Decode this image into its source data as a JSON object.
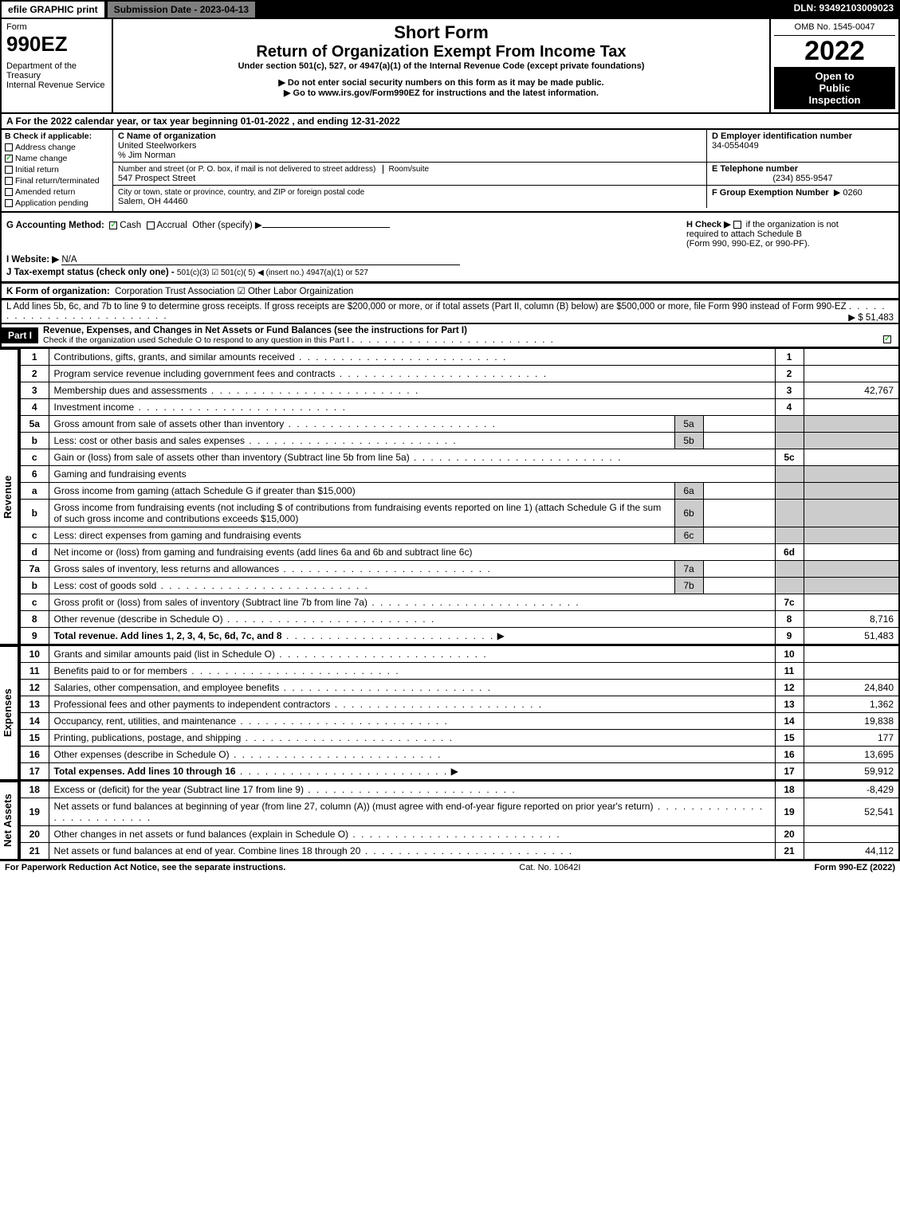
{
  "topbar": {
    "efile": "efile GRAPHIC print",
    "submission": "Submission Date - 2023-04-13",
    "dln": "DLN: 93492103009023"
  },
  "header": {
    "form_label": "Form",
    "form_number": "990EZ",
    "dept": "Department of the Treasury",
    "irs": "Internal Revenue Service",
    "short_form": "Short Form",
    "title": "Return of Organization Exempt From Income Tax",
    "subtitle": "Under section 501(c), 527, or 4947(a)(1) of the Internal Revenue Code (except private foundations)",
    "note1": "▶ Do not enter social security numbers on this form as it may be made public.",
    "note2": "▶ Go to www.irs.gov/Form990EZ for instructions and the latest information.",
    "omb": "OMB No. 1545-0047",
    "year": "2022",
    "inspection1": "Open to",
    "inspection2": "Public",
    "inspection3": "Inspection"
  },
  "sectionA": {
    "text": "A  For the 2022 calendar year, or tax year beginning 01-01-2022 , and ending 12-31-2022"
  },
  "sectionB": {
    "label": "B  Check if applicable:",
    "items": [
      {
        "checked": false,
        "text": "Address change"
      },
      {
        "checked": true,
        "text": "Name change"
      },
      {
        "checked": false,
        "text": "Initial return"
      },
      {
        "checked": false,
        "text": "Final return/terminated"
      },
      {
        "checked": false,
        "text": "Amended return"
      },
      {
        "checked": false,
        "text": "Application pending"
      }
    ]
  },
  "sectionC": {
    "name_label": "C Name of organization",
    "name_value": "United Steelworkers",
    "care_of": "% Jim Norman",
    "street_label": "Number and street (or P. O. box, if mail is not delivered to street address)",
    "room_label": "Room/suite",
    "street_value": "547 Prospect Street",
    "city_label": "City or town, state or province, country, and ZIP or foreign postal code",
    "city_value": "Salem, OH  44460"
  },
  "sectionD": {
    "label": "D Employer identification number",
    "value": "34-0554049"
  },
  "sectionE": {
    "label": "E Telephone number",
    "value": "(234) 855-9547"
  },
  "sectionF": {
    "label": "F Group Exemption Number",
    "value": "▶ 0260"
  },
  "sectionG": {
    "label": "G Accounting Method:",
    "cash": "Cash",
    "accrual": "Accrual",
    "other": "Other (specify) ▶"
  },
  "sectionH": {
    "label": "H  Check ▶",
    "text1": "if the organization is not",
    "text2": "required to attach Schedule B",
    "text3": "(Form 990, 990-EZ, or 990-PF)."
  },
  "sectionI": {
    "label": "I Website: ▶",
    "value": "N/A"
  },
  "sectionJ": {
    "label": "J Tax-exempt status (check only one) -",
    "opts": "501(c)(3)   ☑ 501(c)( 5) ◀ (insert no.)   4947(a)(1) or   527"
  },
  "sectionK": {
    "label": "K Form of organization:",
    "opts": "Corporation   Trust   Association   ☑ Other Labor Orgainization"
  },
  "sectionL": {
    "text": "L Add lines 5b, 6c, and 7b to line 9 to determine gross receipts. If gross receipts are $200,000 or more, or if total assets (Part II, column (B) below) are $500,000 or more, file Form 990 instead of Form 990-EZ",
    "arrow_value": "▶ $ 51,483"
  },
  "partI": {
    "label": "Part I",
    "title": "Revenue, Expenses, and Changes in Net Assets or Fund Balances (see the instructions for Part I)",
    "check_text": "Check if the organization used Schedule O to respond to any question in this Part I"
  },
  "side_labels": {
    "revenue": "Revenue",
    "expenses": "Expenses",
    "net_assets": "Net Assets"
  },
  "revenue_lines": [
    {
      "n": "1",
      "desc": "Contributions, gifts, grants, and similar amounts received",
      "col": "1",
      "val": ""
    },
    {
      "n": "2",
      "desc": "Program service revenue including government fees and contracts",
      "col": "2",
      "val": ""
    },
    {
      "n": "3",
      "desc": "Membership dues and assessments",
      "col": "3",
      "val": "42,767"
    },
    {
      "n": "4",
      "desc": "Investment income",
      "col": "4",
      "val": ""
    }
  ],
  "line5": {
    "a_n": "5a",
    "a_desc": "Gross amount from sale of assets other than inventory",
    "a_col": "5a",
    "a_val": "",
    "b_n": "b",
    "b_desc": "Less: cost or other basis and sales expenses",
    "b_col": "5b",
    "b_val": "",
    "c_n": "c",
    "c_desc": "Gain or (loss) from sale of assets other than inventory (Subtract line 5b from line 5a)",
    "c_col": "5c",
    "c_val": ""
  },
  "line6": {
    "n": "6",
    "desc": "Gaming and fundraising events",
    "a_n": "a",
    "a_desc": "Gross income from gaming (attach Schedule G if greater than $15,000)",
    "a_col": "6a",
    "a_val": "",
    "b_n": "b",
    "b_desc": "Gross income from fundraising events (not including $                  of contributions from fundraising events reported on line 1) (attach Schedule G if the sum of such gross income and contributions exceeds $15,000)",
    "b_col": "6b",
    "b_val": "",
    "c_n": "c",
    "c_desc": "Less: direct expenses from gaming and fundraising events",
    "c_col": "6c",
    "c_val": "",
    "d_n": "d",
    "d_desc": "Net income or (loss) from gaming and fundraising events (add lines 6a and 6b and subtract line 6c)",
    "d_col": "6d",
    "d_val": ""
  },
  "line7": {
    "a_n": "7a",
    "a_desc": "Gross sales of inventory, less returns and allowances",
    "a_col": "7a",
    "a_val": "",
    "b_n": "b",
    "b_desc": "Less: cost of goods sold",
    "b_col": "7b",
    "b_val": "",
    "c_n": "c",
    "c_desc": "Gross profit or (loss) from sales of inventory (Subtract line 7b from line 7a)",
    "c_col": "7c",
    "c_val": ""
  },
  "line8": {
    "n": "8",
    "desc": "Other revenue (describe in Schedule O)",
    "col": "8",
    "val": "8,716"
  },
  "line9": {
    "n": "9",
    "desc": "Total revenue. Add lines 1, 2, 3, 4, 5c, 6d, 7c, and 8",
    "col": "9",
    "val": "51,483"
  },
  "expense_lines": [
    {
      "n": "10",
      "desc": "Grants and similar amounts paid (list in Schedule O)",
      "col": "10",
      "val": ""
    },
    {
      "n": "11",
      "desc": "Benefits paid to or for members",
      "col": "11",
      "val": ""
    },
    {
      "n": "12",
      "desc": "Salaries, other compensation, and employee benefits",
      "col": "12",
      "val": "24,840"
    },
    {
      "n": "13",
      "desc": "Professional fees and other payments to independent contractors",
      "col": "13",
      "val": "1,362"
    },
    {
      "n": "14",
      "desc": "Occupancy, rent, utilities, and maintenance",
      "col": "14",
      "val": "19,838"
    },
    {
      "n": "15",
      "desc": "Printing, publications, postage, and shipping",
      "col": "15",
      "val": "177"
    },
    {
      "n": "16",
      "desc": "Other expenses (describe in Schedule O)",
      "col": "16",
      "val": "13,695"
    },
    {
      "n": "17",
      "desc": "Total expenses. Add lines 10 through 16",
      "col": "17",
      "val": "59,912"
    }
  ],
  "netasset_lines": [
    {
      "n": "18",
      "desc": "Excess or (deficit) for the year (Subtract line 17 from line 9)",
      "col": "18",
      "val": "-8,429"
    },
    {
      "n": "19",
      "desc": "Net assets or fund balances at beginning of year (from line 27, column (A)) (must agree with end-of-year figure reported on prior year's return)",
      "col": "19",
      "val": "52,541"
    },
    {
      "n": "20",
      "desc": "Other changes in net assets or fund balances (explain in Schedule O)",
      "col": "20",
      "val": ""
    },
    {
      "n": "21",
      "desc": "Net assets or fund balances at end of year. Combine lines 18 through 20",
      "col": "21",
      "val": "44,112"
    }
  ],
  "footer": {
    "left": "For Paperwork Reduction Act Notice, see the separate instructions.",
    "center": "Cat. No. 10642I",
    "right": "Form 990-EZ (2022)"
  },
  "colors": {
    "black": "#000000",
    "white": "#ffffff",
    "grey_header": "#7f7f7f",
    "grey_cell": "#cccccc",
    "green_check": "#00aa00"
  }
}
